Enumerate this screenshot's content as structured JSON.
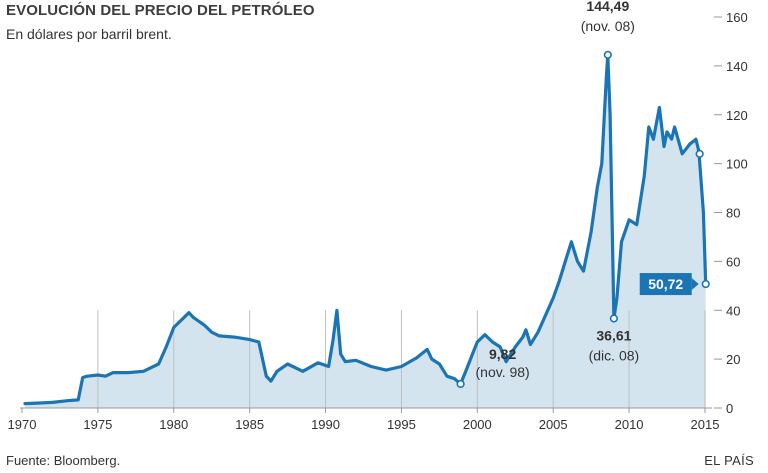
{
  "title": "EVOLUCIÓN DEL PRECIO DEL PETRÓLEO",
  "subtitle": "En dólares por barril brent.",
  "source": "Fuente: Bloomberg.",
  "brand": "EL PAÍS",
  "colors": {
    "line": "#1b75b4",
    "area": "#d3e4ef",
    "grid": "#bfbfbf",
    "axis": "#999999",
    "callout": "#1b75b4"
  },
  "chart_data": {
    "type": "area",
    "title": "EVOLUCIÓN DEL PRECIO DEL PETRÓLEO",
    "ylabel": "En dólares por barril brent.",
    "xlim": [
      1970,
      2015.2
    ],
    "ylim": [
      0,
      160
    ],
    "y_ticks": [
      0,
      20,
      40,
      60,
      80,
      100,
      120,
      140,
      160
    ],
    "x_ticks": [
      1970,
      1975,
      1980,
      1985,
      1990,
      1995,
      2000,
      2005,
      2010,
      2015
    ],
    "grid": "vertical lines at x ticks",
    "series": [
      {
        "name": "Brent",
        "x": [
          1970.2,
          1971.0,
          1972.0,
          1973.0,
          1973.7,
          1974.0,
          1974.3,
          1975.0,
          1975.5,
          1976.0,
          1977.0,
          1978.0,
          1979.0,
          1979.5,
          1980.0,
          1980.5,
          1981.0,
          1981.3,
          1982.0,
          1982.5,
          1983.0,
          1984.0,
          1985.0,
          1985.6,
          1986.1,
          1986.4,
          1986.8,
          1987.5,
          1988.5,
          1989.5,
          1990.2,
          1990.5,
          1990.75,
          1991.0,
          1991.3,
          1992.0,
          1993.0,
          1994.0,
          1995.0,
          1996.0,
          1996.7,
          1997.0,
          1997.5,
          1998.0,
          1998.5,
          1998.9,
          1999.3,
          1999.8,
          2000.0,
          2000.5,
          2001.0,
          2001.5,
          2001.9,
          2002.5,
          2003.0,
          2003.2,
          2003.5,
          2004.0,
          2004.5,
          2005.0,
          2005.4,
          2005.8,
          2006.2,
          2006.6,
          2007.0,
          2007.5,
          2007.9,
          2008.2,
          2008.5,
          2008.6,
          2008.75,
          2008.9,
          2009.0,
          2009.2,
          2009.5,
          2010.0,
          2010.5,
          2011.0,
          2011.3,
          2011.6,
          2012.0,
          2012.3,
          2012.5,
          2012.8,
          2013.0,
          2013.5,
          2014.0,
          2014.4,
          2014.6,
          2014.9,
          2015.05
        ],
        "values": [
          1.8,
          2.0,
          2.3,
          3.0,
          3.3,
          12.5,
          13.0,
          13.5,
          13.0,
          14.5,
          14.5,
          15.0,
          18.0,
          25.0,
          33.0,
          36.0,
          39.0,
          37.0,
          34.0,
          31.0,
          29.5,
          29.0,
          28.0,
          27.0,
          13.0,
          11.0,
          15.0,
          18.0,
          15.0,
          18.5,
          17.0,
          28.0,
          40.0,
          22.0,
          19.0,
          19.5,
          17.0,
          15.5,
          17.0,
          20.5,
          24.0,
          20.0,
          18.0,
          13.0,
          12.0,
          9.82,
          16.0,
          24.0,
          27.0,
          30.0,
          27.0,
          25.0,
          19.0,
          25.0,
          29.0,
          32.0,
          26.0,
          31.0,
          38.0,
          45.0,
          52.0,
          60.0,
          68.0,
          60.0,
          56.0,
          72.0,
          90.0,
          100.0,
          135.0,
          144.49,
          120.0,
          70.0,
          36.61,
          45.0,
          68.0,
          77.0,
          75.0,
          95.0,
          115.0,
          110.0,
          123.0,
          107.0,
          113.0,
          110.0,
          115.0,
          104.0,
          108.0,
          110.0,
          105.0,
          80.0,
          50.72
        ]
      }
    ],
    "annotations": [
      {
        "x": 2008.6,
        "y": 144.49,
        "value": "144,49",
        "date": "(nov. 08)"
      },
      {
        "x": 1998.9,
        "y": 9.82,
        "value": "9,82",
        "date": "(nov. 98)"
      },
      {
        "x": 2009.0,
        "y": 36.61,
        "value": "36,61",
        "date": "(dic. 08)"
      },
      {
        "x": 2014.65,
        "y": 104.0,
        "value": "",
        "date": ""
      }
    ],
    "callout": {
      "x": 2015.05,
      "y": 50.72,
      "label": "50,72"
    }
  }
}
